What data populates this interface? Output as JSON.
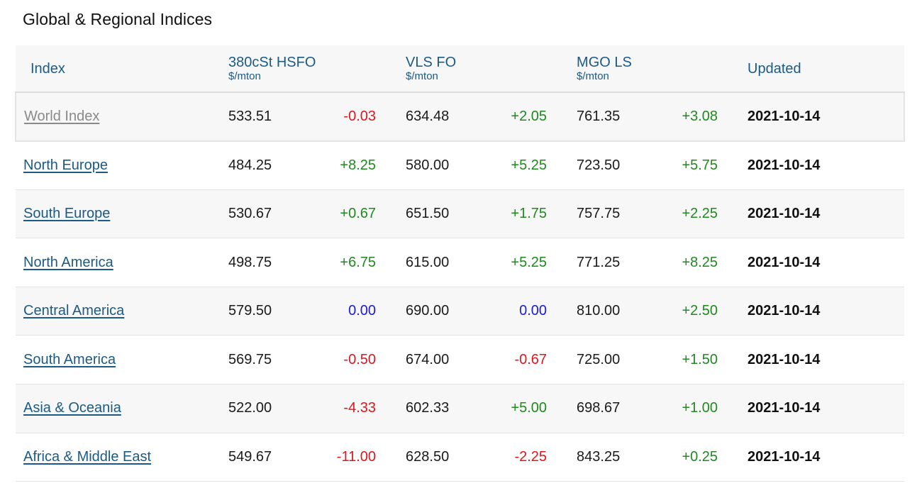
{
  "title": "Global & Regional Indices",
  "headers": {
    "index": "Index",
    "hsfo": {
      "label": "380cSt HSFO",
      "unit": "$/mton"
    },
    "vls": {
      "label": "VLS FO",
      "unit": "$/mton"
    },
    "mgo": {
      "label": "MGO LS",
      "unit": "$/mton"
    },
    "updated": "Updated"
  },
  "rows": [
    {
      "name": "World Index",
      "hsfo": "533.51",
      "hsfo_chg": "-0.03",
      "vls": "634.48",
      "vls_chg": "+2.05",
      "mgo": "761.35",
      "mgo_chg": "+3.08",
      "updated": "2021-10-14"
    },
    {
      "name": "North Europe",
      "hsfo": "484.25",
      "hsfo_chg": "+8.25",
      "vls": "580.00",
      "vls_chg": "+5.25",
      "mgo": "723.50",
      "mgo_chg": "+5.75",
      "updated": "2021-10-14"
    },
    {
      "name": "South Europe",
      "hsfo": "530.67",
      "hsfo_chg": "+0.67",
      "vls": "651.50",
      "vls_chg": "+1.75",
      "mgo": "757.75",
      "mgo_chg": "+2.25",
      "updated": "2021-10-14"
    },
    {
      "name": "North America",
      "hsfo": "498.75",
      "hsfo_chg": "+6.75",
      "vls": "615.00",
      "vls_chg": "+5.25",
      "mgo": "771.25",
      "mgo_chg": "+8.25",
      "updated": "2021-10-14"
    },
    {
      "name": "Central America",
      "hsfo": "579.50",
      "hsfo_chg": "0.00",
      "vls": "690.00",
      "vls_chg": "0.00",
      "mgo": "810.00",
      "mgo_chg": "+2.50",
      "updated": "2021-10-14"
    },
    {
      "name": "South America",
      "hsfo": "569.75",
      "hsfo_chg": "-0.50",
      "vls": "674.00",
      "vls_chg": "-0.67",
      "mgo": "725.00",
      "mgo_chg": "+1.50",
      "updated": "2021-10-14"
    },
    {
      "name": "Asia & Oceania",
      "hsfo": "522.00",
      "hsfo_chg": "-4.33",
      "vls": "602.33",
      "vls_chg": "+5.00",
      "mgo": "698.67",
      "mgo_chg": "+1.00",
      "updated": "2021-10-14"
    },
    {
      "name": "Africa & Middle East",
      "hsfo": "549.67",
      "hsfo_chg": "-11.00",
      "vls": "628.50",
      "vls_chg": "-2.25",
      "mgo": "843.25",
      "mgo_chg": "+0.25",
      "updated": "2021-10-14"
    }
  ],
  "colors": {
    "header_text": "#1b5a85",
    "link": "#1b5a85",
    "positive": "#1e8a1e",
    "negative": "#e0161d",
    "zero": "#1a1ae0",
    "world_link": "#8a8a8a"
  }
}
